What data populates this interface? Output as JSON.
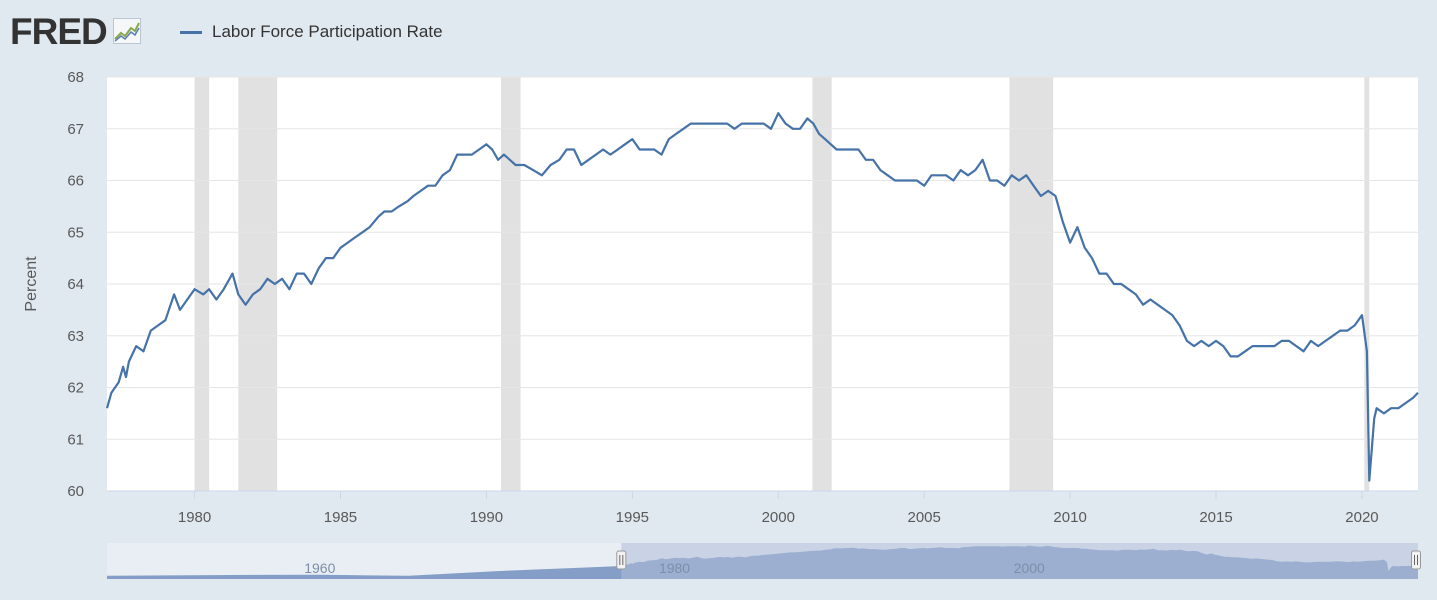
{
  "header": {
    "logo_text": "FRED",
    "legend_label": "Labor Force Participation Rate"
  },
  "colors": {
    "series": "#4572a7",
    "recession": "#e1e1e1",
    "background": "#e1e9f0",
    "plot": "#ffffff"
  },
  "chart_data": {
    "type": "line",
    "title": "",
    "xlabel": "",
    "ylabel": "Percent",
    "ylim": [
      60,
      68
    ],
    "xlim": [
      1977,
      2021.92
    ],
    "x_ticks": [
      "1980",
      "1985",
      "1990",
      "1995",
      "2000",
      "2005",
      "2010",
      "2015",
      "2020"
    ],
    "y_ticks": [
      "60",
      "61",
      "62",
      "63",
      "64",
      "65",
      "66",
      "67",
      "68"
    ],
    "recessions": [
      [
        1980.0,
        1980.5
      ],
      [
        1981.5,
        1982.83
      ],
      [
        1990.5,
        1991.17
      ],
      [
        2001.17,
        2001.83
      ],
      [
        2007.92,
        2009.42
      ],
      [
        2020.08,
        2020.25
      ]
    ],
    "series": [
      {
        "name": "Labor Force Participation Rate",
        "points": [
          [
            1977.0,
            61.6
          ],
          [
            1977.15,
            61.9
          ],
          [
            1977.4,
            62.1
          ],
          [
            1977.55,
            62.4
          ],
          [
            1977.65,
            62.2
          ],
          [
            1977.75,
            62.5
          ],
          [
            1978.0,
            62.8
          ],
          [
            1978.25,
            62.7
          ],
          [
            1978.5,
            63.1
          ],
          [
            1978.75,
            63.2
          ],
          [
            1979.0,
            63.3
          ],
          [
            1979.3,
            63.8
          ],
          [
            1979.5,
            63.5
          ],
          [
            1979.75,
            63.7
          ],
          [
            1980.0,
            63.9
          ],
          [
            1980.3,
            63.8
          ],
          [
            1980.5,
            63.9
          ],
          [
            1980.75,
            63.7
          ],
          [
            1981.0,
            63.9
          ],
          [
            1981.3,
            64.2
          ],
          [
            1981.5,
            63.8
          ],
          [
            1981.75,
            63.6
          ],
          [
            1982.0,
            63.8
          ],
          [
            1982.25,
            63.9
          ],
          [
            1982.5,
            64.1
          ],
          [
            1982.75,
            64.0
          ],
          [
            1983.0,
            64.1
          ],
          [
            1983.25,
            63.9
          ],
          [
            1983.5,
            64.2
          ],
          [
            1983.75,
            64.2
          ],
          [
            1984.0,
            64.0
          ],
          [
            1984.25,
            64.3
          ],
          [
            1984.5,
            64.5
          ],
          [
            1984.75,
            64.5
          ],
          [
            1985.0,
            64.7
          ],
          [
            1985.25,
            64.8
          ],
          [
            1985.5,
            64.9
          ],
          [
            1985.75,
            65.0
          ],
          [
            1986.0,
            65.1
          ],
          [
            1986.3,
            65.3
          ],
          [
            1986.5,
            65.4
          ],
          [
            1986.75,
            65.4
          ],
          [
            1987.0,
            65.5
          ],
          [
            1987.3,
            65.6
          ],
          [
            1987.5,
            65.7
          ],
          [
            1987.75,
            65.8
          ],
          [
            1988.0,
            65.9
          ],
          [
            1988.25,
            65.9
          ],
          [
            1988.5,
            66.1
          ],
          [
            1988.75,
            66.2
          ],
          [
            1989.0,
            66.5
          ],
          [
            1989.25,
            66.5
          ],
          [
            1989.5,
            66.5
          ],
          [
            1989.75,
            66.6
          ],
          [
            1990.0,
            66.7
          ],
          [
            1990.2,
            66.6
          ],
          [
            1990.4,
            66.4
          ],
          [
            1990.6,
            66.5
          ],
          [
            1990.8,
            66.4
          ],
          [
            1991.0,
            66.3
          ],
          [
            1991.3,
            66.3
          ],
          [
            1991.6,
            66.2
          ],
          [
            1991.9,
            66.1
          ],
          [
            1992.2,
            66.3
          ],
          [
            1992.5,
            66.4
          ],
          [
            1992.75,
            66.6
          ],
          [
            1993.0,
            66.6
          ],
          [
            1993.25,
            66.3
          ],
          [
            1993.5,
            66.4
          ],
          [
            1993.75,
            66.5
          ],
          [
            1994.0,
            66.6
          ],
          [
            1994.25,
            66.5
          ],
          [
            1994.5,
            66.6
          ],
          [
            1994.75,
            66.7
          ],
          [
            1995.0,
            66.8
          ],
          [
            1995.25,
            66.6
          ],
          [
            1995.5,
            66.6
          ],
          [
            1995.75,
            66.6
          ],
          [
            1996.0,
            66.5
          ],
          [
            1996.25,
            66.8
          ],
          [
            1996.5,
            66.9
          ],
          [
            1996.75,
            67.0
          ],
          [
            1997.0,
            67.1
          ],
          [
            1997.25,
            67.1
          ],
          [
            1997.5,
            67.1
          ],
          [
            1997.75,
            67.1
          ],
          [
            1998.0,
            67.1
          ],
          [
            1998.25,
            67.1
          ],
          [
            1998.5,
            67.0
          ],
          [
            1998.75,
            67.1
          ],
          [
            1999.0,
            67.1
          ],
          [
            1999.25,
            67.1
          ],
          [
            1999.5,
            67.1
          ],
          [
            1999.75,
            67.0
          ],
          [
            2000.0,
            67.3
          ],
          [
            2000.25,
            67.1
          ],
          [
            2000.5,
            67.0
          ],
          [
            2000.75,
            67.0
          ],
          [
            2001.0,
            67.2
          ],
          [
            2001.2,
            67.1
          ],
          [
            2001.4,
            66.9
          ],
          [
            2001.6,
            66.8
          ],
          [
            2001.8,
            66.7
          ],
          [
            2002.0,
            66.6
          ],
          [
            2002.25,
            66.6
          ],
          [
            2002.5,
            66.6
          ],
          [
            2002.75,
            66.6
          ],
          [
            2003.0,
            66.4
          ],
          [
            2003.25,
            66.4
          ],
          [
            2003.5,
            66.2
          ],
          [
            2003.75,
            66.1
          ],
          [
            2004.0,
            66.0
          ],
          [
            2004.25,
            66.0
          ],
          [
            2004.5,
            66.0
          ],
          [
            2004.75,
            66.0
          ],
          [
            2005.0,
            65.9
          ],
          [
            2005.25,
            66.1
          ],
          [
            2005.5,
            66.1
          ],
          [
            2005.75,
            66.1
          ],
          [
            2006.0,
            66.0
          ],
          [
            2006.25,
            66.2
          ],
          [
            2006.5,
            66.1
          ],
          [
            2006.75,
            66.2
          ],
          [
            2007.0,
            66.4
          ],
          [
            2007.25,
            66.0
          ],
          [
            2007.5,
            66.0
          ],
          [
            2007.75,
            65.9
          ],
          [
            2008.0,
            66.1
          ],
          [
            2008.25,
            66.0
          ],
          [
            2008.5,
            66.1
          ],
          [
            2008.75,
            65.9
          ],
          [
            2009.0,
            65.7
          ],
          [
            2009.25,
            65.8
          ],
          [
            2009.5,
            65.7
          ],
          [
            2009.75,
            65.2
          ],
          [
            2010.0,
            64.8
          ],
          [
            2010.25,
            65.1
          ],
          [
            2010.5,
            64.7
          ],
          [
            2010.75,
            64.5
          ],
          [
            2011.0,
            64.2
          ],
          [
            2011.25,
            64.2
          ],
          [
            2011.5,
            64.0
          ],
          [
            2011.75,
            64.0
          ],
          [
            2012.0,
            63.9
          ],
          [
            2012.25,
            63.8
          ],
          [
            2012.5,
            63.6
          ],
          [
            2012.75,
            63.7
          ],
          [
            2013.0,
            63.6
          ],
          [
            2013.25,
            63.5
          ],
          [
            2013.5,
            63.4
          ],
          [
            2013.75,
            63.2
          ],
          [
            2014.0,
            62.9
          ],
          [
            2014.25,
            62.8
          ],
          [
            2014.5,
            62.9
          ],
          [
            2014.75,
            62.8
          ],
          [
            2015.0,
            62.9
          ],
          [
            2015.25,
            62.8
          ],
          [
            2015.5,
            62.6
          ],
          [
            2015.75,
            62.6
          ],
          [
            2016.0,
            62.7
          ],
          [
            2016.25,
            62.8
          ],
          [
            2016.5,
            62.8
          ],
          [
            2016.75,
            62.8
          ],
          [
            2017.0,
            62.8
          ],
          [
            2017.25,
            62.9
          ],
          [
            2017.5,
            62.9
          ],
          [
            2017.75,
            62.8
          ],
          [
            2018.0,
            62.7
          ],
          [
            2018.25,
            62.9
          ],
          [
            2018.5,
            62.8
          ],
          [
            2018.75,
            62.9
          ],
          [
            2019.0,
            63.0
          ],
          [
            2019.25,
            63.1
          ],
          [
            2019.5,
            63.1
          ],
          [
            2019.75,
            63.2
          ],
          [
            2020.0,
            63.4
          ],
          [
            2020.17,
            62.7
          ],
          [
            2020.25,
            60.2
          ],
          [
            2020.42,
            61.4
          ],
          [
            2020.5,
            61.6
          ],
          [
            2020.75,
            61.5
          ],
          [
            2021.0,
            61.6
          ],
          [
            2021.25,
            61.6
          ],
          [
            2021.5,
            61.7
          ],
          [
            2021.75,
            61.8
          ],
          [
            2021.92,
            61.9
          ]
        ]
      }
    ],
    "navigator": {
      "x_ticks": [
        "1960",
        "1980",
        "2000"
      ],
      "range": [
        1948,
        2021.92
      ],
      "selected": [
        1977,
        2021.92
      ]
    }
  }
}
